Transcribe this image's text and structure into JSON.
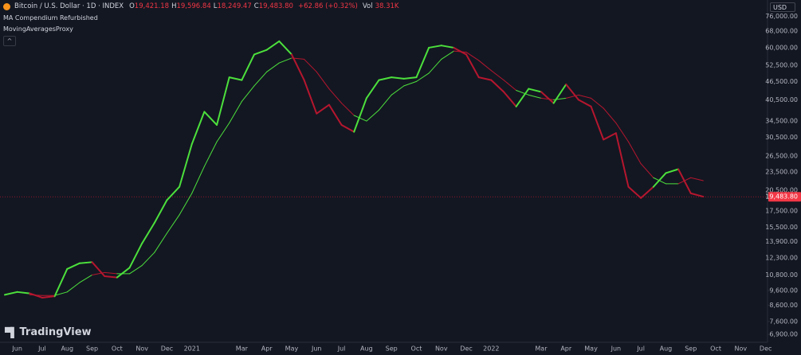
{
  "header": {
    "ohlc": [
      {
        "label": "O",
        "value": "19,421.18"
      },
      {
        "label": "H",
        "value": "19,596.84"
      },
      {
        "label": "L",
        "value": "18,249.47"
      },
      {
        "label": "C",
        "value": "19,483.80"
      }
    ],
    "change": "+62.86 (+0.32%)",
    "volume": {
      "label": "Vol",
      "value": "38.31K"
    }
  },
  "indicator": "MA Compendium Refurbished",
  "currency": "USD",
  "brand": "TradingView",
  "chart_data": {
    "type": "line",
    "log_scale": true,
    "grid": false,
    "up_color": "#4ce03c",
    "down_color": "#b5162e",
    "categories": [
      null,
      "Jun",
      null,
      "Jul",
      null,
      "Aug",
      null,
      "Sep",
      null,
      "Oct",
      null,
      "Nov",
      null,
      "Dec",
      null,
      "2021",
      null,
      null,
      null,
      "Mar",
      null,
      "Apr",
      null,
      "May",
      null,
      "Jun",
      null,
      "Jul",
      null,
      "Aug",
      null,
      "Sep",
      null,
      "Oct",
      null,
      "Nov",
      null,
      "Dec",
      null,
      "2022",
      null,
      null,
      null,
      "Mar",
      null,
      "Apr",
      null,
      "May",
      null,
      "Jun",
      null,
      "Jul",
      null,
      "Aug",
      null,
      "Sep",
      null,
      "Oct",
      null,
      "Nov",
      null,
      "Dec"
    ],
    "series": [
      {
        "name": "Bitcoin / U.S. Dollar · 1D · INDEX",
        "width": 2,
        "values": [
          9300,
          9500,
          9400,
          9100,
          9200,
          11300,
          11800,
          11900,
          10700,
          10600,
          11400,
          13700,
          16000,
          19000,
          21000,
          29000,
          37000,
          33500,
          48000,
          47000,
          57000,
          59000,
          63000,
          57000,
          47000,
          36500,
          39000,
          33500,
          31800,
          41000,
          47000,
          48000,
          47500,
          48000,
          60000,
          61000,
          60000,
          57000,
          48000,
          47000,
          43000,
          38500,
          44000,
          43000,
          39500,
          45500,
          40500,
          38500,
          30000,
          31500,
          21000,
          19300,
          21000,
          23300,
          24000,
          20000,
          19500,
          null,
          null,
          null,
          null,
          null
        ]
      },
      {
        "name": "MovingAveragesProxy",
        "width": 1,
        "values": [
          null,
          null,
          9300,
          9250,
          9250,
          9500,
          10200,
          10800,
          11000,
          10900,
          10900,
          11600,
          12800,
          14800,
          17000,
          20000,
          24500,
          29500,
          34000,
          40000,
          45000,
          50000,
          53500,
          55500,
          55000,
          50000,
          44000,
          39500,
          36000,
          34500,
          37500,
          42000,
          45000,
          46500,
          49500,
          55000,
          58500,
          58000,
          54500,
          50500,
          47000,
          43500,
          42000,
          41000,
          40500,
          41000,
          42000,
          41000,
          38000,
          34000,
          29500,
          25000,
          22500,
          21500,
          21500,
          22500,
          22000,
          null,
          null,
          null,
          null,
          null
        ]
      }
    ],
    "ylim": [
      6500,
      86000
    ],
    "yticks": [
      {
        "value": 76000,
        "label": "76,000.00"
      },
      {
        "value": 68000,
        "label": "68,000.00"
      },
      {
        "value": 60000,
        "label": "60,000.00"
      },
      {
        "value": 52500,
        "label": "52,500.00"
      },
      {
        "value": 46500,
        "label": "46,500.00"
      },
      {
        "value": 40500,
        "label": "40,500.00"
      },
      {
        "value": 34500,
        "label": "34,500.00"
      },
      {
        "value": 30500,
        "label": "30,500.00"
      },
      {
        "value": 26500,
        "label": "26,500.00"
      },
      {
        "value": 23500,
        "label": "23,500.00"
      },
      {
        "value": 20500,
        "label": "20,500.00"
      },
      {
        "value": 17500,
        "label": "17,500.00"
      },
      {
        "value": 15500,
        "label": "15,500.00"
      },
      {
        "value": 13900,
        "label": "13,900.00"
      },
      {
        "value": 12300,
        "label": "12,300.00"
      },
      {
        "value": 10800,
        "label": "10,800.00"
      },
      {
        "value": 9600,
        "label": "9,600.00"
      },
      {
        "value": 8600,
        "label": "8,600.00"
      },
      {
        "value": 7600,
        "label": "7,600.00"
      },
      {
        "value": 6900,
        "label": "6,900.00"
      }
    ],
    "last_price": {
      "value": 19483.8,
      "label": "19,483.80"
    }
  }
}
